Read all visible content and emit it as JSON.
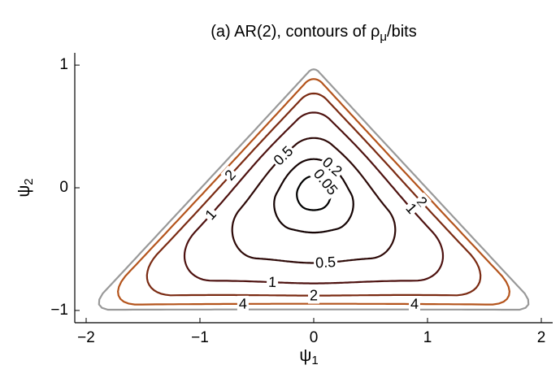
{
  "chart_data": {
    "type": "contour",
    "title": {
      "text": "(a) AR(2), contours of ρ",
      "subscript": "μ",
      "suffix": "/bits"
    },
    "x_label": {
      "text": "ψ",
      "subscript": "1"
    },
    "y_label": {
      "text": "ψ",
      "subscript": "2"
    },
    "xlim": [
      -2.1,
      2.1
    ],
    "ylim": [
      -1.1,
      1.1
    ],
    "xticks": [
      {
        "value": -2,
        "label": "−2"
      },
      {
        "value": -1,
        "label": "−1"
      },
      0,
      1,
      2
    ],
    "yticks": [
      {
        "value": -1,
        "label": "−1"
      },
      0,
      1
    ],
    "boundary_color": "#999999",
    "contours": [
      {
        "level": 4,
        "color": "#b4541c"
      },
      {
        "level": 2,
        "color": "#7a2a12"
      },
      {
        "level": 1,
        "color": "#4e1210"
      },
      {
        "level": 0.5,
        "color": "#2e0a08"
      },
      {
        "level": 0.2,
        "color": "#150404"
      },
      {
        "level": 0.05,
        "color": "#000000"
      }
    ]
  }
}
